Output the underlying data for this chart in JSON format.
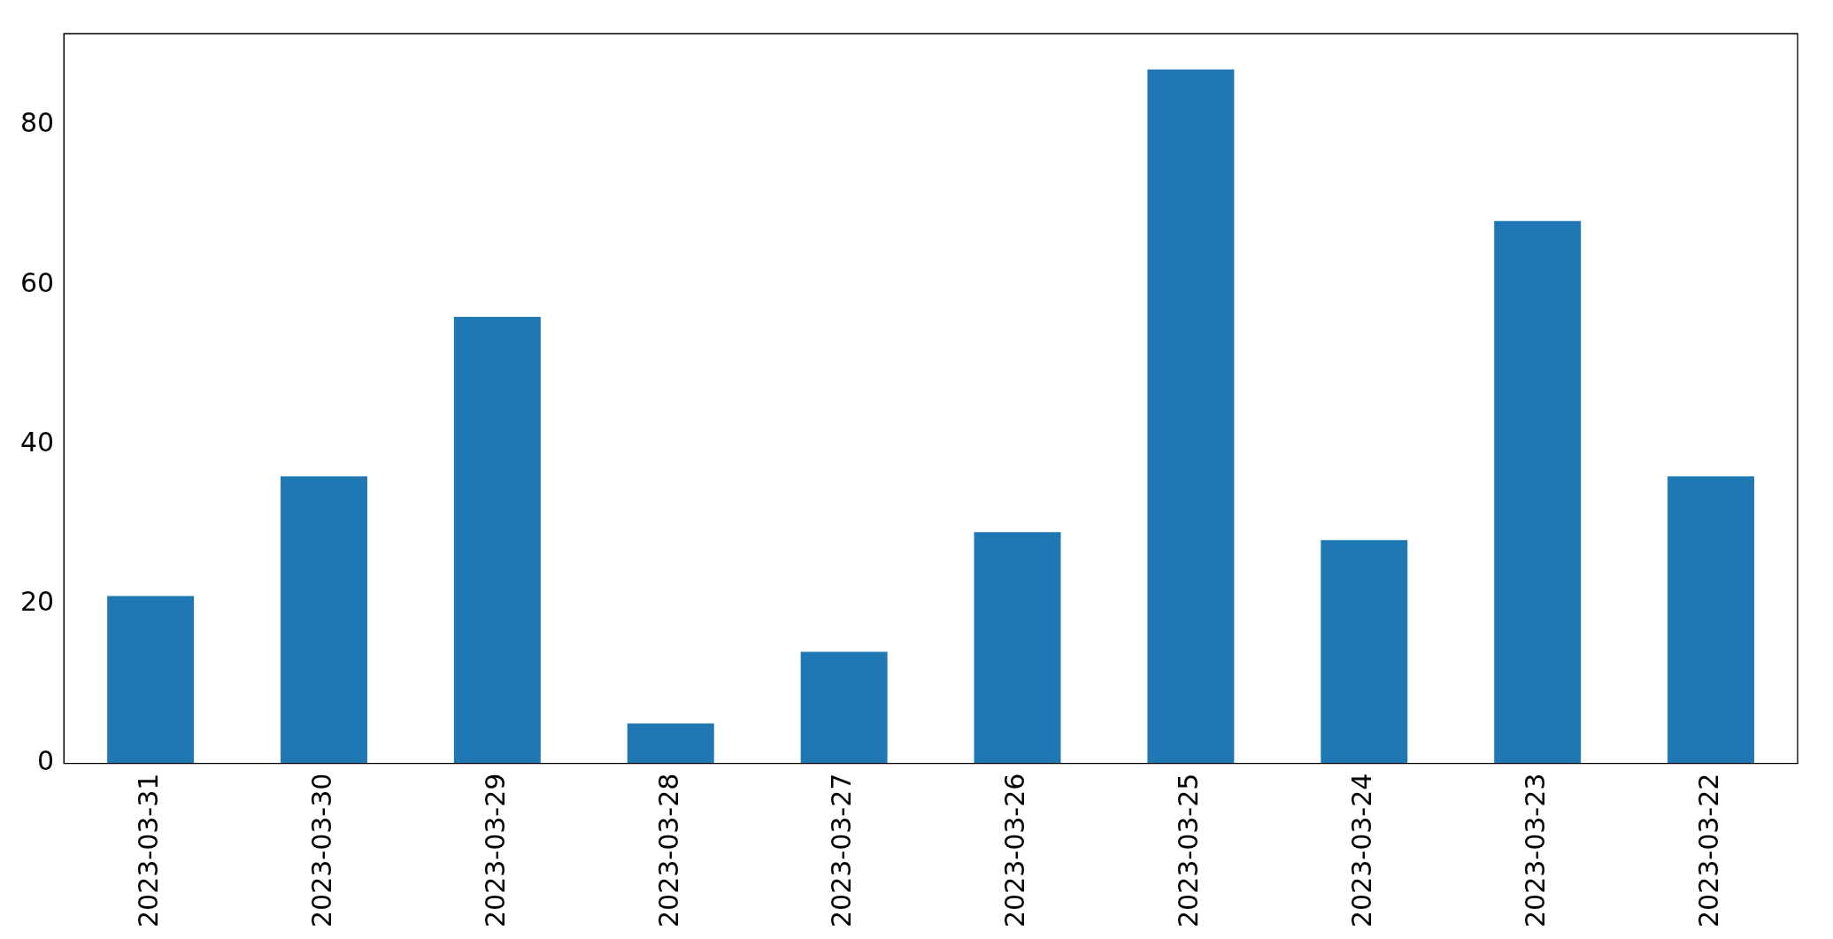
{
  "chart_data": {
    "type": "bar",
    "categories": [
      "2023-03-31",
      "2023-03-30",
      "2023-03-29",
      "2023-03-28",
      "2023-03-27",
      "2023-03-26",
      "2023-03-25",
      "2023-03-24",
      "2023-03-23",
      "2023-03-22"
    ],
    "values": [
      21,
      36,
      56,
      5,
      14,
      29,
      87,
      28,
      68,
      36
    ],
    "color": "#1f77b4",
    "ylim": [
      0,
      91.5
    ],
    "yticks": [
      0,
      20,
      40,
      60,
      80
    ],
    "grid": false,
    "legend": false
  }
}
